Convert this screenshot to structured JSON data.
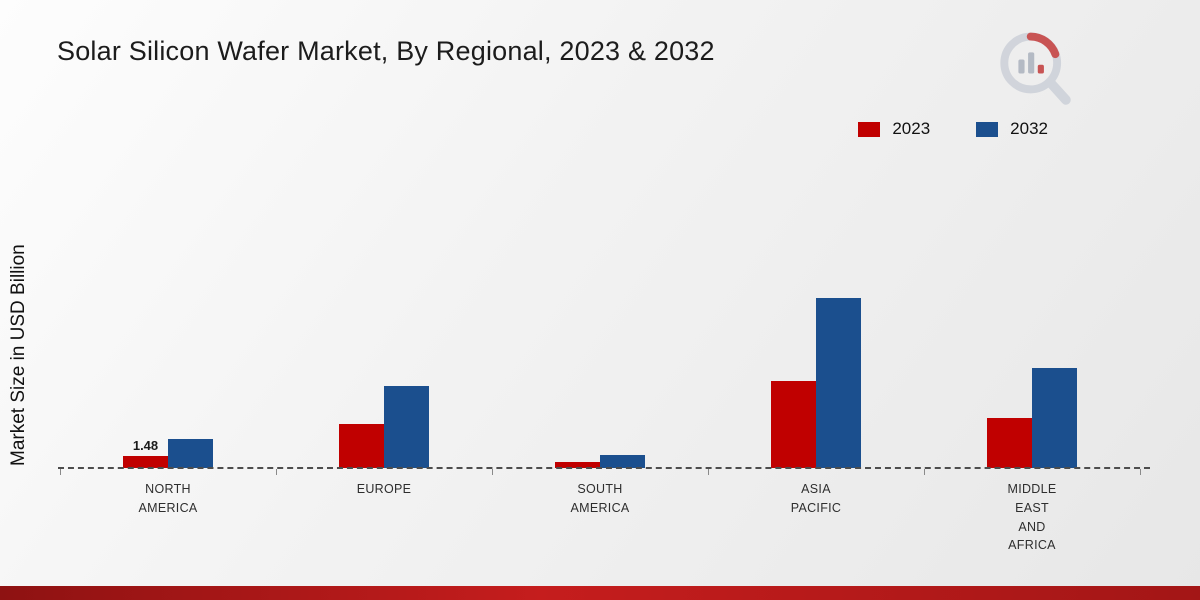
{
  "page": {
    "title": "Solar Silicon Wafer Market, By Regional, 2023 & 2032",
    "y_axis_label": "Market Size in USD Billion"
  },
  "legend": {
    "items": [
      {
        "label": "2023",
        "color": "#c00000"
      },
      {
        "label": "2032",
        "color": "#1b4f8e"
      }
    ]
  },
  "chart_data": {
    "type": "bar",
    "title": "Solar Silicon Wafer Market, By Regional, 2023 & 2032",
    "ylabel": "Market Size in USD Billion",
    "categories": [
      "NORTH AMERICA",
      "EUROPE",
      "SOUTH AMERICA",
      "ASIA PACIFIC",
      "MIDDLE EAST AND AFRICA"
    ],
    "series": [
      {
        "name": "2023",
        "color": "#c00000",
        "values": [
          1.48,
          5.5,
          0.75,
          11.0,
          6.3
        ]
      },
      {
        "name": "2032",
        "color": "#1b4f8e",
        "values": [
          3.7,
          10.3,
          1.6,
          21.4,
          12.6
        ]
      }
    ],
    "data_labels": [
      {
        "series_index": 0,
        "category_index": 0,
        "text": "1.48"
      }
    ],
    "ylim": [
      0,
      24
    ],
    "grid": false,
    "legend_position": "top-right",
    "baseline_style": "dashed"
  },
  "icons": {
    "brand_logo": "magnifier-bar-chart-logo"
  }
}
